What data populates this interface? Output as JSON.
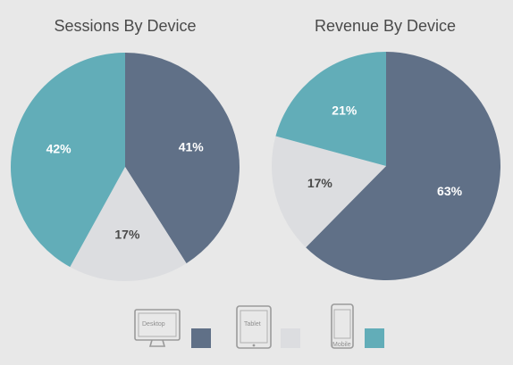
{
  "colors": {
    "desktop": "#607087",
    "tablet": "#dcdde0",
    "mobile": "#62adb8",
    "label_light": "#ffffff",
    "label_dark": "#4a4a4a"
  },
  "legend": [
    {
      "label": "Desktop",
      "icon": "desktop-monitor-icon",
      "color": "#607087"
    },
    {
      "label": "Tablet",
      "icon": "tablet-icon",
      "color": "#dcdde0"
    },
    {
      "label": "Mobile",
      "icon": "mobile-phone-icon",
      "color": "#62adb8"
    }
  ],
  "chart_data": [
    {
      "type": "pie",
      "title": "Sessions By Device",
      "slices": [
        {
          "category": "Desktop",
          "value": 41,
          "label": "41%"
        },
        {
          "category": "Tablet",
          "value": 17,
          "label": "17%"
        },
        {
          "category": "Mobile",
          "value": 42,
          "label": "42%"
        }
      ]
    },
    {
      "type": "pie",
      "title": "Revenue By Device",
      "slices": [
        {
          "category": "Desktop",
          "value": 63,
          "label": "63%"
        },
        {
          "category": "Tablet",
          "value": 17,
          "label": "17%"
        },
        {
          "category": "Mobile",
          "value": 21,
          "label": "21%"
        }
      ]
    }
  ]
}
